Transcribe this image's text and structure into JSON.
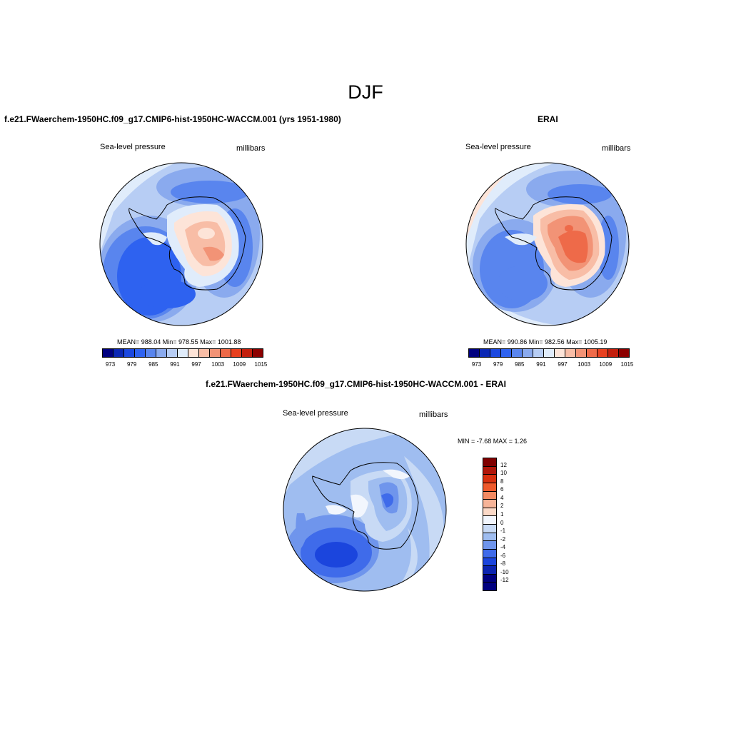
{
  "figure": {
    "season": "DJF"
  },
  "panels": [
    {
      "title": "f.e21.FWaerchem-1950HC.f09_g17.CMIP6-hist-1950HC-WACCM.001 (yrs 1951-1980)",
      "variable": "Sea-level pressure",
      "units": "millibars",
      "stats": "MEAN= 988.04   Min= 978.55   Max= 1001.88",
      "colorbar_labels": [
        "973",
        "979",
        "985",
        "991",
        "997",
        "1003",
        "1009",
        "1015"
      ]
    },
    {
      "title": "ERAI",
      "variable": "Sea-level pressure",
      "units": "millibars",
      "stats": "MEAN= 990.86   Min= 982.56   Max= 1005.19",
      "colorbar_labels": [
        "973",
        "979",
        "985",
        "991",
        "997",
        "1003",
        "1009",
        "1015"
      ]
    },
    {
      "title": "f.e21.FWaerchem-1950HC.f09_g17.CMIP6-hist-1950HC-WACCM.001 - ERAI",
      "variable": "Sea-level pressure",
      "units": "millibars",
      "stats": "MIN =  -7.68 MAX =   1.26",
      "colorbar_labels": [
        "12",
        "10",
        "8",
        "6",
        "4",
        "2",
        "1",
        "0",
        "-1",
        "-2",
        "-4",
        "-6",
        "-8",
        "-10",
        "-12"
      ]
    }
  ],
  "palettes": {
    "slp": [
      "#00007f",
      "#0b27b4",
      "#1b48e0",
      "#2e62f0",
      "#5985ee",
      "#8aaaee",
      "#b7cdf4",
      "#e0ecfb",
      "#fde4d8",
      "#f8bda6",
      "#f29376",
      "#ee6a49",
      "#e8401f",
      "#c21e0c",
      "#8c0000"
    ],
    "diff": [
      "#7f0000",
      "#b0160a",
      "#d8300f",
      "#ee5a2c",
      "#f38a62",
      "#f7b498",
      "#fbd9c7",
      "#f2f6fd",
      "#c8daf5",
      "#9fbdf0",
      "#6f95ec",
      "#3f6bea",
      "#1b45dd",
      "#0c24b0",
      "#00007f"
    ]
  }
}
